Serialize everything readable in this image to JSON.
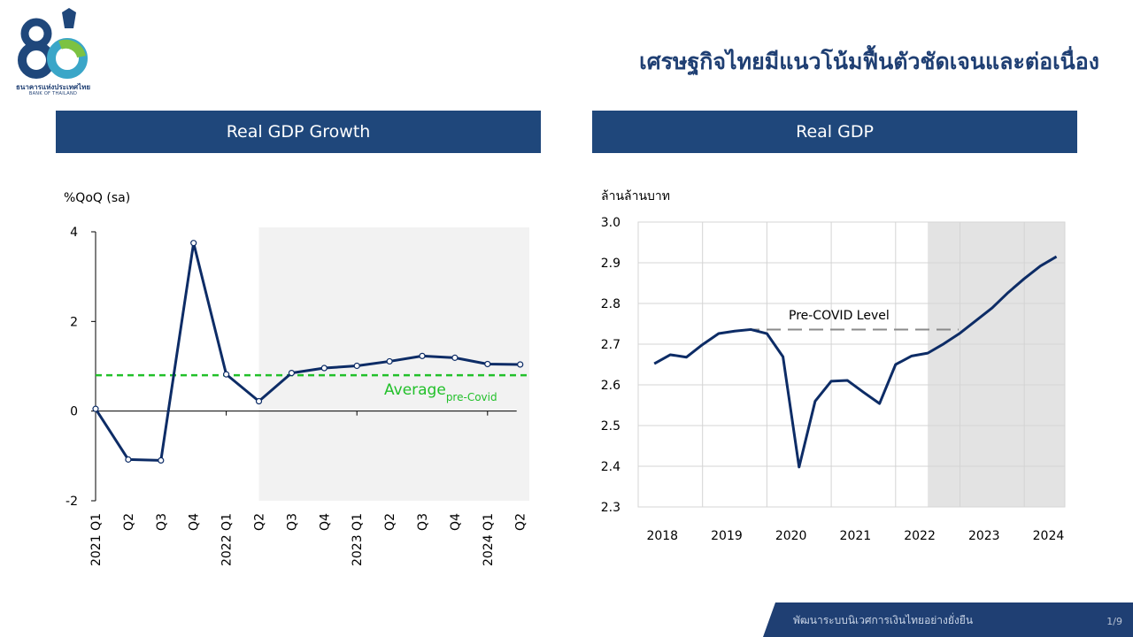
{
  "logo": {
    "thai": "ธนาคารแห่งประเทศไทย",
    "english": "BANK OF THAILAND",
    "number": "80"
  },
  "slide_title": "เศรษฐกิจไทยมีแนวโน้มฟื้นตัวชัดเจนและต่อเนื่อง",
  "footer": {
    "text": "พัฒนาระบบนิเวศการเงินไทยอย่างยั่งยืน",
    "page": "1/9"
  },
  "colors": {
    "header_bg": "#1f477b",
    "title": "#1f3f73",
    "line": "#0d2c66",
    "average": "#22c02a",
    "shade": "#f2f2f2",
    "shade_right": "#e3e3e3"
  },
  "chart_data": [
    {
      "type": "line",
      "panel_title": "Real GDP Growth",
      "ylabel": "%QoQ (sa)",
      "ylim": [
        -2,
        4
      ],
      "yticks": [
        -2,
        0,
        2,
        4
      ],
      "x": [
        "2021 Q1",
        "Q2",
        "Q3",
        "Q4",
        "2022 Q1",
        "Q2",
        "Q3",
        "Q4",
        "2023 Q1",
        "Q2",
        "Q3",
        "Q4",
        "2024 Q1",
        "Q2"
      ],
      "series": [
        {
          "values": [
            0.05,
            -1.08,
            -1.1,
            3.75,
            0.82,
            0.22,
            0.85,
            0.96,
            1.01,
            1.11,
            1.23,
            1.19,
            1.05,
            1.04
          ]
        }
      ],
      "reference_line": {
        "value": 0.8,
        "label": "Average",
        "label_sub": "pre-Covid",
        "style": "dashed"
      },
      "shaded_from_index": 5,
      "grid": false
    },
    {
      "type": "line",
      "panel_title": "Real GDP",
      "ylabel": "ล้านล้านบาท",
      "ylim": [
        2.3,
        3.0
      ],
      "yticks": [
        "2.3",
        "2.4",
        "2.5",
        "2.6",
        "2.7",
        "2.8",
        "2.9",
        "3.0"
      ],
      "xticks": [
        "2018",
        "2019",
        "2020",
        "2021",
        "2022",
        "2023",
        "2024"
      ],
      "x_start": 2018.0,
      "x_step": 0.25,
      "series": [
        {
          "values": [
            2.652,
            2.674,
            2.668,
            2.699,
            2.726,
            2.732,
            2.736,
            2.726,
            2.669,
            2.398,
            2.56,
            2.609,
            2.611,
            2.582,
            2.554,
            2.65,
            2.671,
            2.678,
            2.701,
            2.727,
            2.758,
            2.789,
            2.827,
            2.861,
            2.892,
            2.915
          ]
        }
      ],
      "reference_line": {
        "value": 2.736,
        "label": "Pre-COVID Level",
        "style": "dashed"
      },
      "shaded_from": 2022.25,
      "grid": true
    }
  ]
}
